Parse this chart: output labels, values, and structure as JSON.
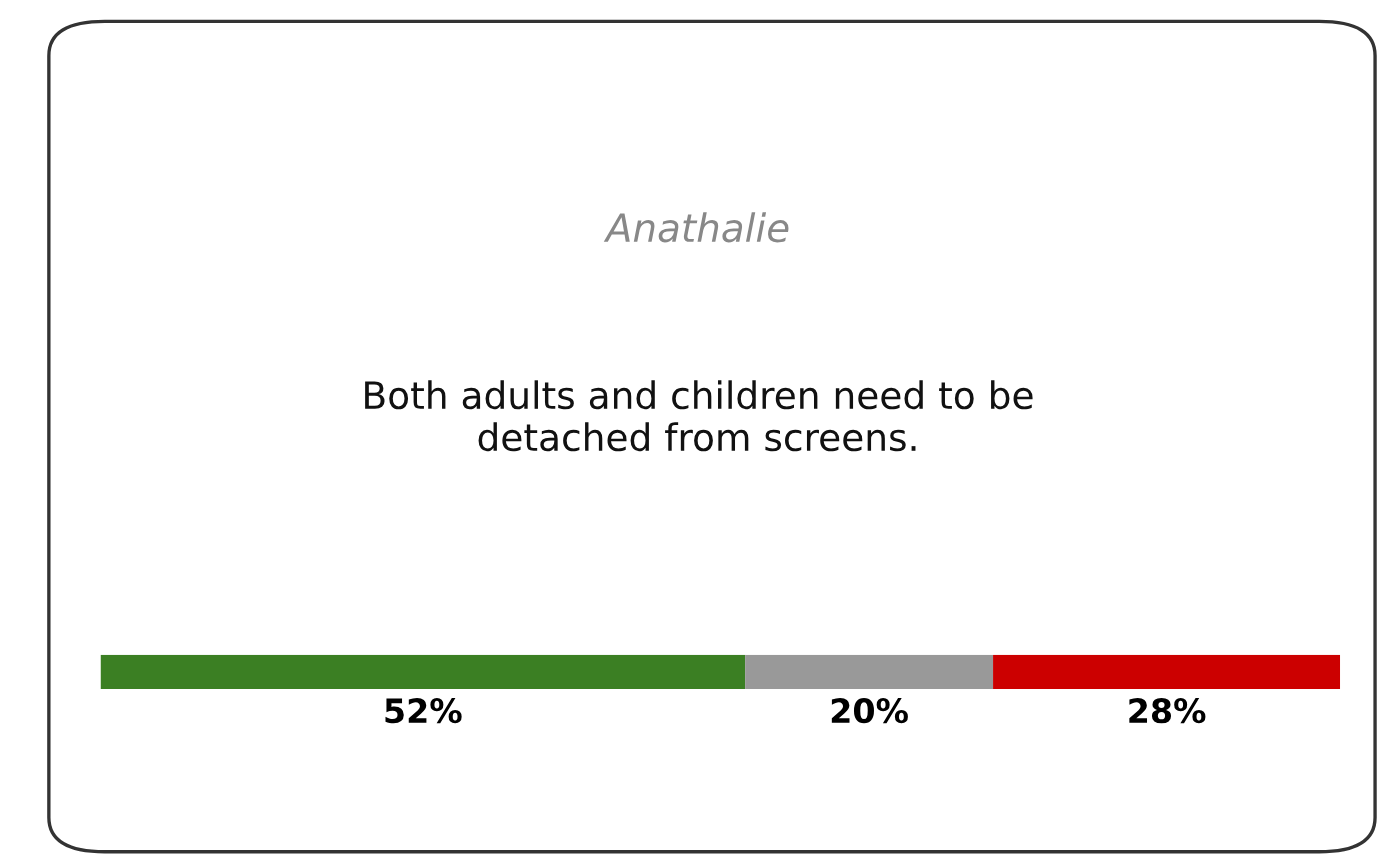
{
  "chart_data": {
    "type": "bar",
    "orientation": "horizontal",
    "stacked": true,
    "title": "Anathalie",
    "subtitle": "Both adults and children need to be\ndetached from screens.",
    "categories": [
      null
    ],
    "series": [
      {
        "color": "#3b7f23",
        "values": [
          52
        ],
        "value_labels": [
          "52%"
        ]
      },
      {
        "color": "#999999",
        "values": [
          20
        ],
        "value_labels": [
          "20%"
        ]
      },
      {
        "color": "#cc0000",
        "values": [
          28
        ],
        "value_labels": [
          "28%"
        ]
      }
    ],
    "legend": false
  }
}
